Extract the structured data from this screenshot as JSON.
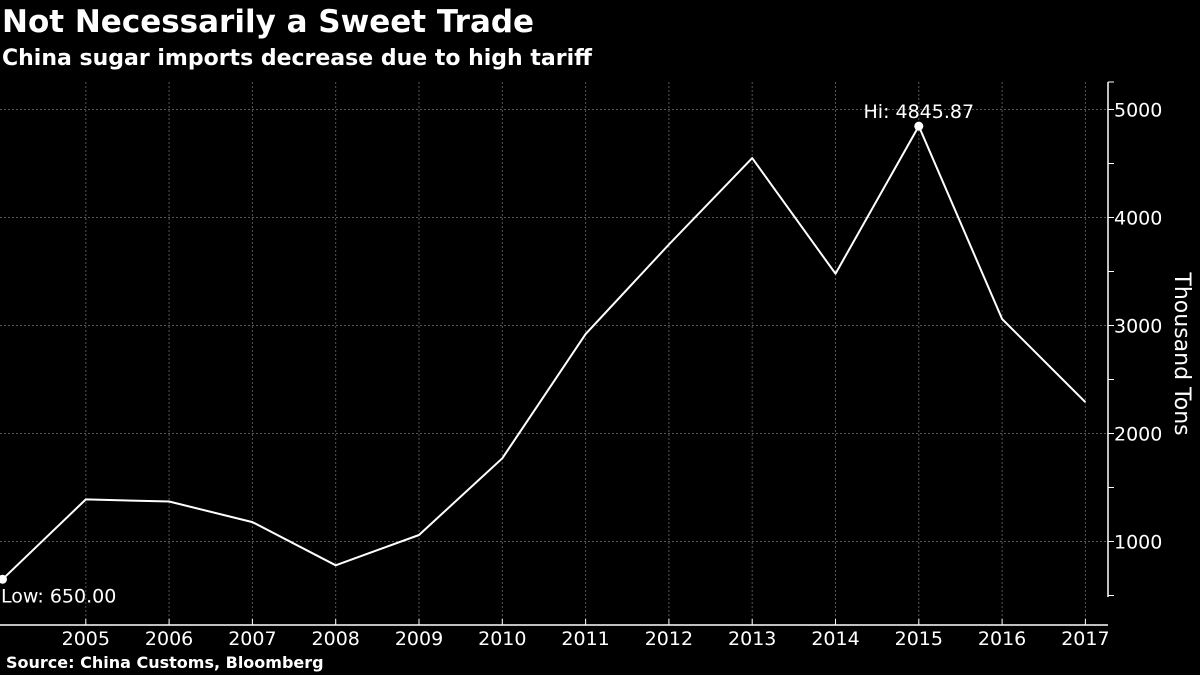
{
  "header": {
    "title": "Not Necessarily a Sweet Trade",
    "subtitle": "China sugar imports decrease due to high tariff"
  },
  "footer": {
    "source": "Source: China Customs, Bloomberg"
  },
  "colors": {
    "background": "#000000",
    "line": "#ffffff",
    "grid": "#555555",
    "text": "#ffffff"
  },
  "chart_data": {
    "type": "line",
    "title": "Not Necessarily a Sweet Trade",
    "subtitle": "China sugar imports decrease due to high tariff",
    "xlabel": "",
    "ylabel": "Thousand Tons",
    "x": [
      2004,
      2005,
      2006,
      2007,
      2008,
      2009,
      2010,
      2011,
      2012,
      2013,
      2014,
      2015,
      2016,
      2017
    ],
    "x_tick_labels": [
      "2005",
      "2006",
      "2007",
      "2008",
      "2009",
      "2010",
      "2011",
      "2012",
      "2013",
      "2014",
      "2015",
      "2016",
      "2017"
    ],
    "y_tick_labels": [
      "1000",
      "2000",
      "3000",
      "4000",
      "5000"
    ],
    "series": [
      {
        "values": [
          650.0,
          1390,
          1370,
          1180,
          780,
          1060,
          1770,
          2920,
          3750,
          4550,
          3480,
          4845.87,
          3060,
          2290
        ]
      }
    ],
    "xlim": [
      2004,
      2017.3
    ],
    "ylim": [
      0,
      5300
    ],
    "y_axis_position": "right",
    "grid": true,
    "legend": "none",
    "annotations": [
      {
        "label": "Hi: 4845.87",
        "x": 2015,
        "y": 4845.87
      },
      {
        "label": "Low: 650.00",
        "x": 2004,
        "y": 650.0
      }
    ]
  }
}
